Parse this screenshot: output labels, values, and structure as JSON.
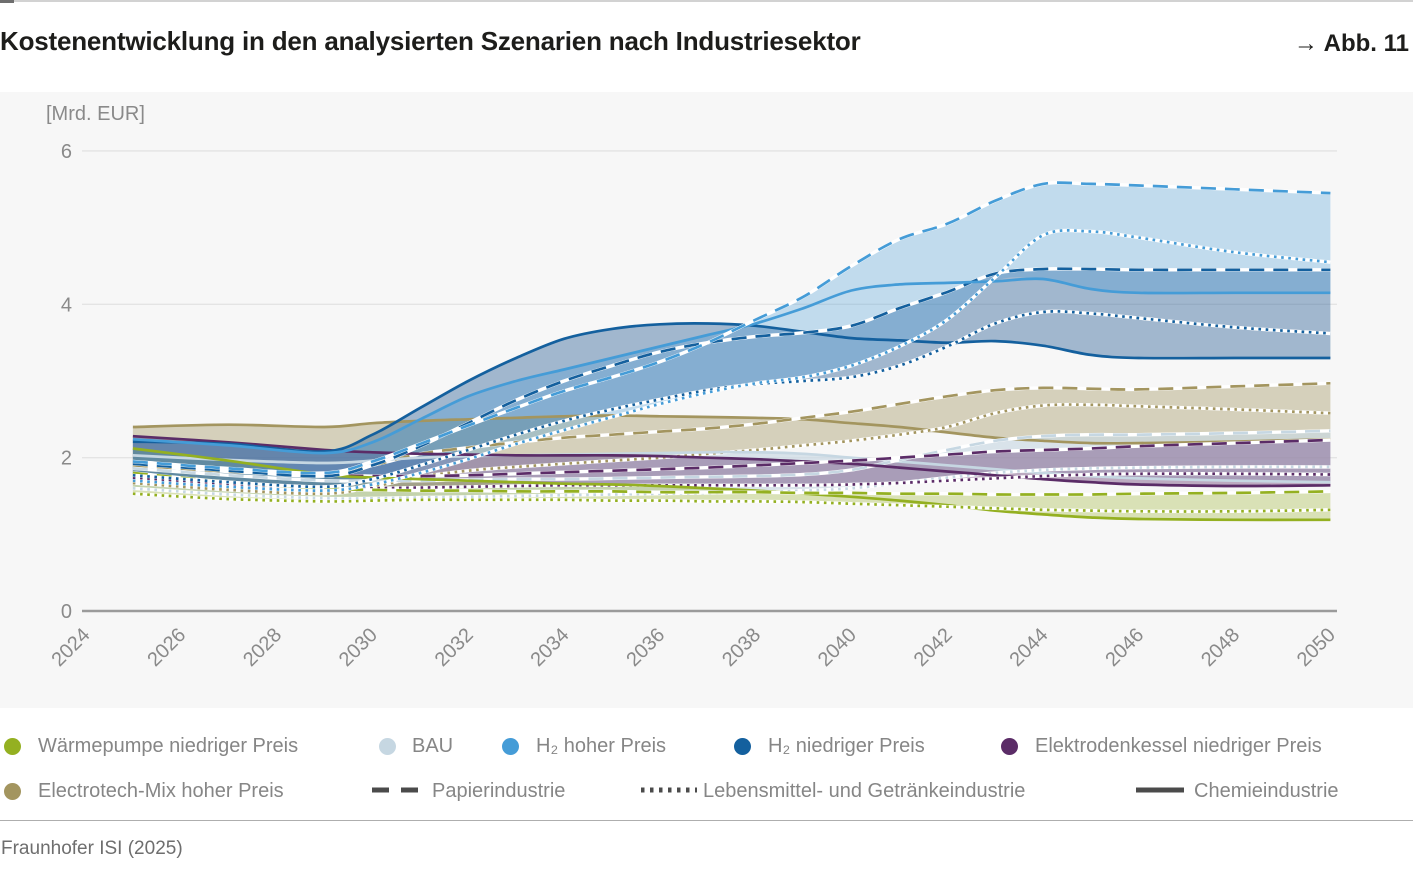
{
  "header": {
    "title": "Kostenentwicklung in den analysierten Szenarien nach Industriesektor",
    "figure_ref_arrow": "→",
    "figure_ref": "Abb. 11"
  },
  "footer": {
    "source": "Fraunhofer ISI (2025)"
  },
  "chart_data": {
    "type": "line",
    "unit_label": "[Mrd. EUR]",
    "ylim": [
      0,
      6
    ],
    "y_ticks": [
      0,
      2,
      4,
      6
    ],
    "x_ticks": [
      2024,
      2026,
      2028,
      2030,
      2032,
      2034,
      2036,
      2038,
      2040,
      2042,
      2044,
      2046,
      2048,
      2050
    ],
    "grid": "horizontal-only",
    "legend_position": "bottom",
    "years": [
      2025,
      2027,
      2029,
      2030,
      2031,
      2032,
      2033,
      2034,
      2035,
      2036,
      2037,
      2038,
      2039,
      2040,
      2041,
      2042,
      2043,
      2044,
      2045,
      2046,
      2048,
      2050
    ],
    "scenarios": [
      {
        "id": "wp",
        "label": "Wärmepumpe niedriger Preis",
        "color": "#94b021",
        "band_fill": "#94b021",
        "band_opacity": 0.3
      },
      {
        "id": "bau",
        "label": "BAU",
        "color": "#c6d7e2",
        "band_fill": "#c9d9e4",
        "band_opacity": 0.65
      },
      {
        "id": "h2h",
        "label": "H₂ hoher Preis",
        "color": "#459cd7",
        "band_fill": "#459cd7",
        "band_opacity": 0.3
      },
      {
        "id": "h2n",
        "label": "H₂ niedriger Preis",
        "color": "#14609e",
        "band_fill": "#2a6097",
        "band_opacity": 0.42
      },
      {
        "id": "ek",
        "label": "Elektrodenkessel niedriger Preis",
        "color": "#5b2c67",
        "band_fill": "#5b2c67",
        "band_opacity": 0.38
      },
      {
        "id": "et",
        "label": "Electrotech-Mix hoher Preis",
        "color": "#a3955f",
        "band_fill": "#a89a69",
        "band_opacity": 0.42
      }
    ],
    "band_order": [
      "et",
      "bau",
      "ek",
      "wp",
      "h2n",
      "h2h"
    ],
    "sectors": [
      {
        "id": "papier",
        "label": "Papierindustrie",
        "style": "dashed",
        "dash": "15 9"
      },
      {
        "id": "lebensmittel",
        "label": "Lebensmittel- und Getränkeindustrie",
        "style": "dotted",
        "dash": "2.6 4.6"
      },
      {
        "id": "chemie",
        "label": "Chemieindustrie",
        "style": "solid",
        "dash": null
      }
    ],
    "series": [
      {
        "scenario": "wp",
        "sector": "papier",
        "values": [
          1.8,
          1.68,
          1.6,
          1.58,
          1.57,
          1.57,
          1.56,
          1.56,
          1.56,
          1.55,
          1.55,
          1.55,
          1.54,
          1.54,
          1.53,
          1.53,
          1.52,
          1.52,
          1.52,
          1.53,
          1.54,
          1.56
        ]
      },
      {
        "scenario": "wp",
        "sector": "lebensmittel",
        "values": [
          1.53,
          1.46,
          1.43,
          1.44,
          1.45,
          1.45,
          1.45,
          1.45,
          1.44,
          1.44,
          1.43,
          1.43,
          1.42,
          1.4,
          1.38,
          1.36,
          1.34,
          1.32,
          1.31,
          1.3,
          1.3,
          1.32
        ]
      },
      {
        "scenario": "wp",
        "sector": "chemie",
        "values": [
          2.12,
          1.96,
          1.78,
          1.74,
          1.72,
          1.7,
          1.68,
          1.66,
          1.65,
          1.63,
          1.6,
          1.57,
          1.53,
          1.49,
          1.44,
          1.38,
          1.31,
          1.26,
          1.22,
          1.2,
          1.19,
          1.19
        ]
      },
      {
        "scenario": "bau",
        "sector": "papier",
        "values": [
          1.86,
          1.77,
          1.7,
          1.7,
          1.7,
          1.71,
          1.72,
          1.72,
          1.73,
          1.74,
          1.75,
          1.76,
          1.78,
          1.84,
          1.97,
          2.1,
          2.22,
          2.28,
          2.3,
          2.3,
          2.32,
          2.35
        ]
      },
      {
        "scenario": "bau",
        "sector": "lebensmittel",
        "values": [
          1.6,
          1.52,
          1.47,
          1.47,
          1.48,
          1.49,
          1.5,
          1.51,
          1.52,
          1.53,
          1.54,
          1.55,
          1.57,
          1.6,
          1.67,
          1.74,
          1.8,
          1.84,
          1.86,
          1.87,
          1.88,
          1.88
        ]
      },
      {
        "scenario": "bau",
        "sector": "chemie",
        "values": [
          2.03,
          1.97,
          1.93,
          1.96,
          2.0,
          2.02,
          2.03,
          2.04,
          2.05,
          2.06,
          2.07,
          2.07,
          2.05,
          2.0,
          1.95,
          1.9,
          1.85,
          1.8,
          1.76,
          1.73,
          1.7,
          1.68
        ]
      },
      {
        "scenario": "h2h",
        "sector": "papier",
        "values": [
          1.95,
          1.86,
          1.8,
          1.95,
          2.18,
          2.42,
          2.65,
          2.87,
          3.05,
          3.25,
          3.5,
          3.8,
          4.1,
          4.5,
          4.85,
          5.05,
          5.35,
          5.57,
          5.57,
          5.55,
          5.5,
          5.45
        ]
      },
      {
        "scenario": "h2h",
        "sector": "lebensmittel",
        "values": [
          1.7,
          1.62,
          1.57,
          1.65,
          1.8,
          1.98,
          2.18,
          2.36,
          2.53,
          2.7,
          2.85,
          2.97,
          3.05,
          3.2,
          3.45,
          3.8,
          4.35,
          4.9,
          4.95,
          4.87,
          4.68,
          4.55
        ]
      },
      {
        "scenario": "h2h",
        "sector": "chemie",
        "values": [
          2.24,
          2.16,
          2.06,
          2.2,
          2.5,
          2.8,
          3.0,
          3.15,
          3.3,
          3.45,
          3.6,
          3.75,
          3.95,
          4.18,
          4.26,
          4.28,
          4.3,
          4.33,
          4.2,
          4.15,
          4.15,
          4.15
        ]
      },
      {
        "scenario": "h2n",
        "sector": "papier",
        "values": [
          1.92,
          1.83,
          1.76,
          1.9,
          2.15,
          2.45,
          2.75,
          3.0,
          3.2,
          3.38,
          3.5,
          3.58,
          3.63,
          3.72,
          3.95,
          4.16,
          4.4,
          4.46,
          4.46,
          4.45,
          4.45,
          4.45
        ]
      },
      {
        "scenario": "h2n",
        "sector": "lebensmittel",
        "values": [
          1.77,
          1.68,
          1.62,
          1.72,
          1.9,
          2.1,
          2.3,
          2.48,
          2.63,
          2.76,
          2.88,
          2.96,
          3.0,
          3.05,
          3.2,
          3.45,
          3.75,
          3.9,
          3.88,
          3.82,
          3.7,
          3.62
        ]
      },
      {
        "scenario": "h2n",
        "sector": "chemie",
        "values": [
          2.21,
          2.18,
          2.08,
          2.3,
          2.65,
          3.0,
          3.3,
          3.55,
          3.68,
          3.74,
          3.75,
          3.72,
          3.64,
          3.56,
          3.53,
          3.5,
          3.52,
          3.46,
          3.34,
          3.3,
          3.3,
          3.3
        ]
      },
      {
        "scenario": "ek",
        "sector": "papier",
        "values": [
          1.94,
          1.85,
          1.78,
          1.76,
          1.76,
          1.77,
          1.79,
          1.81,
          1.83,
          1.85,
          1.87,
          1.9,
          1.93,
          1.96,
          2.0,
          2.04,
          2.08,
          2.1,
          2.12,
          2.15,
          2.19,
          2.23
        ]
      },
      {
        "scenario": "ek",
        "sector": "lebensmittel",
        "values": [
          1.74,
          1.66,
          1.6,
          1.6,
          1.61,
          1.62,
          1.63,
          1.64,
          1.64,
          1.64,
          1.64,
          1.64,
          1.64,
          1.65,
          1.67,
          1.7,
          1.73,
          1.76,
          1.78,
          1.79,
          1.79,
          1.78
        ]
      },
      {
        "scenario": "ek",
        "sector": "chemie",
        "values": [
          2.28,
          2.2,
          2.1,
          2.07,
          2.05,
          2.04,
          2.03,
          2.03,
          2.03,
          2.02,
          2.0,
          1.98,
          1.95,
          1.92,
          1.87,
          1.82,
          1.77,
          1.72,
          1.68,
          1.65,
          1.63,
          1.64
        ]
      },
      {
        "scenario": "et",
        "sector": "papier",
        "values": [
          1.9,
          1.82,
          1.78,
          1.9,
          2.05,
          2.13,
          2.2,
          2.26,
          2.3,
          2.34,
          2.38,
          2.44,
          2.52,
          2.6,
          2.7,
          2.8,
          2.88,
          2.91,
          2.9,
          2.89,
          2.93,
          2.97
        ]
      },
      {
        "scenario": "et",
        "sector": "lebensmittel",
        "values": [
          1.67,
          1.58,
          1.53,
          1.62,
          1.75,
          1.83,
          1.88,
          1.92,
          1.96,
          2.0,
          2.05,
          2.1,
          2.16,
          2.22,
          2.3,
          2.4,
          2.58,
          2.68,
          2.69,
          2.67,
          2.63,
          2.58
        ]
      },
      {
        "scenario": "et",
        "sector": "chemie",
        "values": [
          2.4,
          2.43,
          2.4,
          2.45,
          2.48,
          2.5,
          2.52,
          2.54,
          2.55,
          2.54,
          2.53,
          2.52,
          2.5,
          2.45,
          2.4,
          2.33,
          2.26,
          2.22,
          2.19,
          2.19,
          2.21,
          2.24
        ]
      }
    ]
  }
}
